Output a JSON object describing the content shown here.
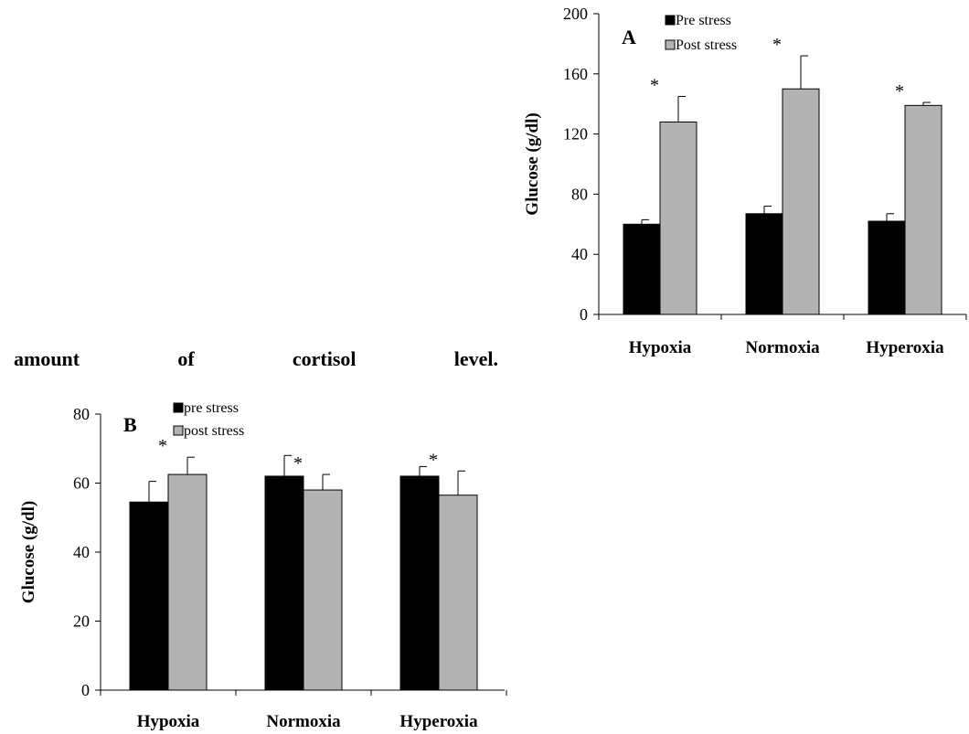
{
  "body_text": {
    "words": [
      "amount",
      "of",
      "cortisol",
      "level."
    ]
  },
  "chart_data": [
    {
      "type": "bar",
      "panel_label": "A",
      "title": "",
      "xlabel": "",
      "ylabel": "Glucose (g/dl)",
      "ylim": [
        0,
        200
      ],
      "yticks": [
        0,
        40,
        80,
        120,
        160,
        200
      ],
      "grid": false,
      "legend_position": "top-left",
      "categories": [
        "Hypoxia",
        "Normoxia",
        "Hyperoxia"
      ],
      "series": [
        {
          "name": "Pre stress",
          "color": "#000000",
          "values": [
            60,
            67,
            62
          ],
          "errors": [
            3,
            5,
            5
          ]
        },
        {
          "name": "Post stress",
          "color": "#b3b3b3",
          "values": [
            128,
            150,
            139
          ],
          "errors": [
            17,
            22,
            2
          ]
        }
      ],
      "significance": [
        "*",
        "*",
        "*"
      ]
    },
    {
      "type": "bar",
      "panel_label": "B",
      "title": "",
      "xlabel": "",
      "ylabel": "Glucose (g/dl)",
      "ylim": [
        0,
        80
      ],
      "yticks": [
        0,
        20,
        40,
        60,
        80
      ],
      "grid": false,
      "legend_position": "top-left",
      "categories": [
        "Hypoxia",
        "Normoxia",
        "Hyperoxia"
      ],
      "series": [
        {
          "name": "pre stress",
          "color": "#000000",
          "values": [
            54.5,
            62,
            62
          ],
          "errors": [
            6,
            6,
            2.8
          ]
        },
        {
          "name": "post stress",
          "color": "#b3b3b3",
          "values": [
            62.5,
            58,
            56.5
          ],
          "errors": [
            5,
            4.5,
            7
          ]
        }
      ],
      "significance": [
        "*",
        "*",
        "*"
      ]
    }
  ]
}
